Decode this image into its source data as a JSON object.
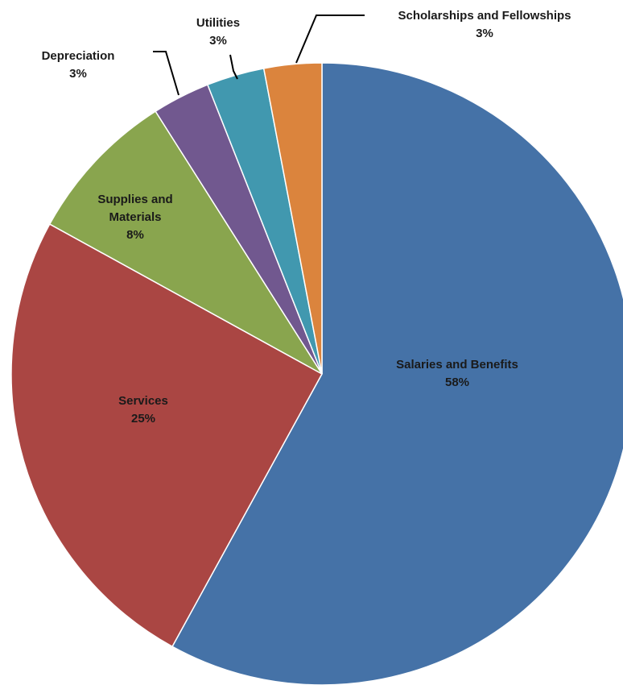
{
  "chart_data": {
    "type": "pie",
    "title": "",
    "start_angle_deg": 0,
    "direction": "clockwise",
    "slices": [
      {
        "label": "Salaries and Benefits",
        "value": 58,
        "display": "58%",
        "color": "#4572a7"
      },
      {
        "label": "Services",
        "value": 25,
        "display": "25%",
        "color": "#aa4643"
      },
      {
        "label": "Supplies and Materials",
        "value": 8,
        "display": "8%",
        "color": "#89a54e"
      },
      {
        "label": "Depreciation",
        "value": 3,
        "display": "3%",
        "color": "#71588f"
      },
      {
        "label": "Utilities",
        "value": 3,
        "display": "3%",
        "color": "#4198af"
      },
      {
        "label": "Scholarships and Fellowships",
        "value": 3,
        "display": "3%",
        "color": "#db843d"
      }
    ]
  }
}
